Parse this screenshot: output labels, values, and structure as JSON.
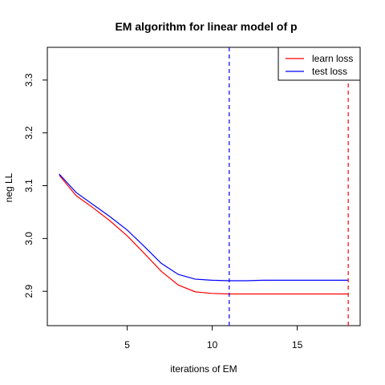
{
  "chart_data": {
    "type": "line",
    "title": "EM algorithm for linear model of p",
    "xlabel": "iterations of EM",
    "ylabel": "neg LL",
    "xlim": [
      0.3,
      18.7
    ],
    "ylim": [
      2.835,
      3.362
    ],
    "x_ticks": [
      5,
      10,
      15
    ],
    "y_ticks": [
      2.9,
      3.0,
      3.1,
      3.2,
      3.3
    ],
    "y_tick_labels": [
      "2.9",
      "3.0",
      "3.1",
      "3.2",
      "3.3"
    ],
    "grid": false,
    "legend_position": "top-right",
    "x": [
      1,
      2,
      3,
      4,
      5,
      6,
      7,
      8,
      9,
      10,
      11,
      12,
      13,
      14,
      15,
      16,
      17,
      18
    ],
    "series": [
      {
        "name": "learn loss",
        "color": "#ff0000",
        "values": [
          3.12,
          3.081,
          3.058,
          3.033,
          3.005,
          2.972,
          2.938,
          2.912,
          2.899,
          2.896,
          2.895,
          2.895,
          2.895,
          2.895,
          2.895,
          2.895,
          2.895,
          2.895
        ]
      },
      {
        "name": "test loss",
        "color": "#0000ff",
        "values": [
          3.122,
          3.087,
          3.064,
          3.041,
          3.016,
          2.985,
          2.953,
          2.932,
          2.923,
          2.921,
          2.92,
          2.92,
          2.921,
          2.921,
          2.921,
          2.921,
          2.921,
          2.921
        ]
      }
    ],
    "vlines": [
      {
        "x": 11,
        "color": "#0000ff",
        "style": "dashed"
      },
      {
        "x": 18,
        "color": "#ff0000",
        "style": "dashed"
      }
    ]
  }
}
